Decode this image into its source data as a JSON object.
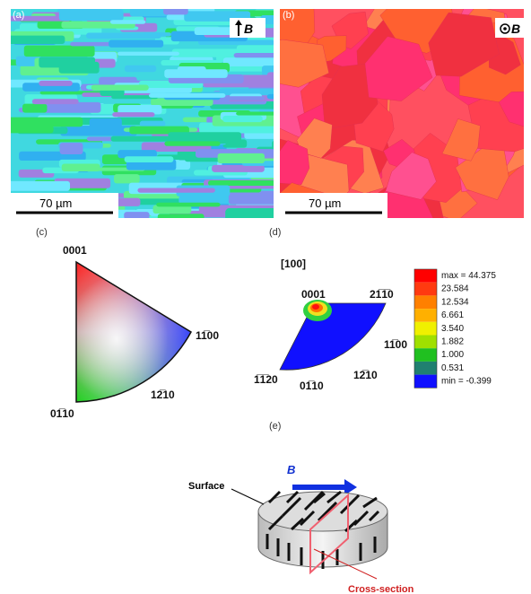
{
  "panels": {
    "a": {
      "label": "(a)",
      "field": "B",
      "scale_bar": "70 µm"
    },
    "b": {
      "label": "(b)",
      "field": "B",
      "scale_bar": "70 µm"
    },
    "c": {
      "label": "(c)",
      "vertices": [
        "0001",
        "11̅00",
        "01̅10"
      ],
      "edge_label": "12̅10"
    },
    "d": {
      "label": "(d)",
      "direction": "[100]",
      "vertex_labels": [
        "0001",
        "21̅1̅0",
        "11̅00",
        "1̅1̅20",
        "01̅10",
        "12̅10"
      ],
      "legend": [
        "max = 44.375",
        "23.584",
        "12.534",
        "6.661",
        "3.540",
        "1.882",
        "1.000",
        "0.531",
        "min = -0.399"
      ]
    },
    "e": {
      "label": "(e)",
      "field": "B",
      "surface": "Surface",
      "cross_section": "Cross-section"
    }
  }
}
